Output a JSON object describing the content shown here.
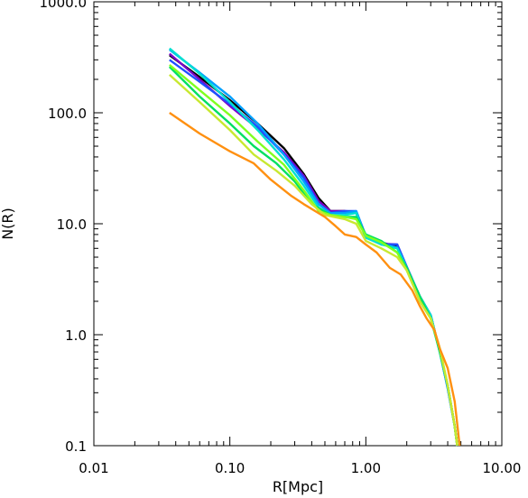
{
  "chart_data": {
    "type": "line",
    "title": "",
    "xlabel": "R[Mpc]",
    "ylabel": "N(R)",
    "xscale": "log",
    "yscale": "log",
    "xlim": [
      0.01,
      10.0
    ],
    "ylim": [
      0.1,
      1000.0
    ],
    "grid": false,
    "legend": "none",
    "x_ticks": [
      {
        "value": 0.01,
        "label": "0.01"
      },
      {
        "value": 0.1,
        "label": "0.10"
      },
      {
        "value": 1.0,
        "label": "1.00"
      },
      {
        "value": 10.0,
        "label": "10.00"
      }
    ],
    "y_ticks": [
      {
        "value": 0.1,
        "label": "0.1"
      },
      {
        "value": 1.0,
        "label": "1.0"
      },
      {
        "value": 10.0,
        "label": "10.0"
      },
      {
        "value": 100.0,
        "label": "100.0"
      },
      {
        "value": 1000.0,
        "label": "1000.0"
      }
    ],
    "series": [
      {
        "color": "#000000",
        "points": [
          [
            0.036,
            330
          ],
          [
            0.06,
            210
          ],
          [
            0.1,
            130
          ],
          [
            0.16,
            80
          ],
          [
            0.25,
            48
          ],
          [
            0.35,
            28
          ],
          [
            0.45,
            17
          ],
          [
            0.55,
            13
          ],
          [
            0.7,
            13
          ],
          [
            0.85,
            12.5
          ],
          [
            1.0,
            7.5
          ],
          [
            1.3,
            6.8
          ],
          [
            1.7,
            6.2
          ],
          [
            2.0,
            4.0
          ],
          [
            2.5,
            2.2
          ],
          [
            3.0,
            1.5
          ],
          [
            3.5,
            0.7
          ],
          [
            4.0,
            0.35
          ],
          [
            4.5,
            0.15
          ],
          [
            4.7,
            0.1
          ]
        ]
      },
      {
        "color": "#7a00c8",
        "points": [
          [
            0.036,
            340
          ],
          [
            0.06,
            200
          ],
          [
            0.1,
            115
          ],
          [
            0.16,
            72
          ],
          [
            0.25,
            44
          ],
          [
            0.35,
            27
          ],
          [
            0.45,
            16
          ],
          [
            0.55,
            13
          ],
          [
            0.7,
            13
          ],
          [
            0.85,
            12.8
          ],
          [
            1.0,
            7.5
          ],
          [
            1.3,
            6.6
          ],
          [
            1.7,
            6.5
          ],
          [
            2.0,
            4.0
          ],
          [
            2.5,
            2.2
          ],
          [
            3.0,
            1.5
          ],
          [
            3.5,
            0.7
          ],
          [
            4.0,
            0.35
          ],
          [
            4.5,
            0.15
          ],
          [
            4.7,
            0.1
          ]
        ]
      },
      {
        "color": "#1e50ff",
        "points": [
          [
            0.036,
            300
          ],
          [
            0.06,
            190
          ],
          [
            0.1,
            120
          ],
          [
            0.16,
            75
          ],
          [
            0.25,
            42
          ],
          [
            0.35,
            26
          ],
          [
            0.45,
            15
          ],
          [
            0.55,
            12.5
          ],
          [
            0.7,
            13
          ],
          [
            0.85,
            13
          ],
          [
            1.0,
            7.8
          ],
          [
            1.3,
            6.5
          ],
          [
            1.7,
            6.5
          ],
          [
            2.0,
            4.1
          ],
          [
            2.5,
            2.2
          ],
          [
            3.0,
            1.5
          ],
          [
            3.5,
            0.7
          ],
          [
            4.0,
            0.33
          ],
          [
            4.5,
            0.15
          ],
          [
            4.7,
            0.1
          ]
        ]
      },
      {
        "color": "#00a0ff",
        "points": [
          [
            0.036,
            370
          ],
          [
            0.06,
            230
          ],
          [
            0.1,
            140
          ],
          [
            0.16,
            80
          ],
          [
            0.25,
            42
          ],
          [
            0.35,
            24
          ],
          [
            0.45,
            15
          ],
          [
            0.55,
            12.5
          ],
          [
            0.7,
            12.5
          ],
          [
            0.85,
            13
          ],
          [
            1.0,
            7.6
          ],
          [
            1.3,
            6.5
          ],
          [
            1.7,
            6.1
          ],
          [
            2.0,
            4.0
          ],
          [
            2.5,
            2.2
          ],
          [
            3.0,
            1.5
          ],
          [
            3.5,
            0.7
          ],
          [
            4.0,
            0.33
          ],
          [
            4.5,
            0.15
          ],
          [
            4.7,
            0.1
          ]
        ]
      },
      {
        "color": "#00e0d0",
        "points": [
          [
            0.036,
            380
          ],
          [
            0.06,
            225
          ],
          [
            0.1,
            125
          ],
          [
            0.16,
            70
          ],
          [
            0.25,
            38
          ],
          [
            0.35,
            22
          ],
          [
            0.45,
            14
          ],
          [
            0.55,
            12
          ],
          [
            0.7,
            12
          ],
          [
            0.85,
            12.5
          ],
          [
            1.0,
            7.5
          ],
          [
            1.3,
            6.5
          ],
          [
            1.7,
            6
          ],
          [
            2.0,
            4.0
          ],
          [
            2.5,
            2.2
          ],
          [
            3.0,
            1.5
          ],
          [
            3.5,
            0.7
          ],
          [
            4.0,
            0.35
          ],
          [
            4.5,
            0.15
          ],
          [
            4.7,
            0.1
          ]
        ]
      },
      {
        "color": "#00e060",
        "points": [
          [
            0.036,
            260
          ],
          [
            0.06,
            140
          ],
          [
            0.1,
            80
          ],
          [
            0.15,
            50
          ],
          [
            0.22,
            35
          ],
          [
            0.3,
            24
          ],
          [
            0.4,
            15
          ],
          [
            0.55,
            12
          ],
          [
            0.7,
            11.5
          ],
          [
            0.85,
            11.5
          ],
          [
            1.0,
            8.0
          ],
          [
            1.3,
            7.0
          ],
          [
            1.7,
            5.5
          ],
          [
            2.0,
            4.0
          ],
          [
            2.5,
            2.2
          ],
          [
            3.0,
            1.4
          ],
          [
            3.5,
            0.7
          ],
          [
            4.0,
            0.35
          ],
          [
            4.5,
            0.15
          ],
          [
            4.7,
            0.1
          ]
        ]
      },
      {
        "color": "#80ff20",
        "points": [
          [
            0.036,
            270
          ],
          [
            0.06,
            160
          ],
          [
            0.1,
            95
          ],
          [
            0.16,
            55
          ],
          [
            0.25,
            34
          ],
          [
            0.35,
            20
          ],
          [
            0.45,
            13
          ],
          [
            0.55,
            12
          ],
          [
            0.7,
            11.5
          ],
          [
            0.85,
            11
          ],
          [
            1.0,
            7.8
          ],
          [
            1.3,
            6.8
          ],
          [
            1.7,
            5.5
          ],
          [
            2.0,
            3.8
          ],
          [
            2.5,
            2.0
          ],
          [
            3.0,
            1.4
          ],
          [
            3.5,
            0.75
          ],
          [
            4.0,
            0.35
          ],
          [
            4.5,
            0.15
          ],
          [
            4.7,
            0.1
          ]
        ]
      },
      {
        "color": "#c8e830",
        "points": [
          [
            0.036,
            220
          ],
          [
            0.06,
            125
          ],
          [
            0.1,
            70
          ],
          [
            0.15,
            42
          ],
          [
            0.22,
            30
          ],
          [
            0.3,
            22
          ],
          [
            0.4,
            15
          ],
          [
            0.5,
            12
          ],
          [
            0.7,
            11
          ],
          [
            0.85,
            10
          ],
          [
            1.0,
            7.0
          ],
          [
            1.3,
            6.0
          ],
          [
            1.7,
            5.0
          ],
          [
            2.0,
            3.8
          ],
          [
            2.5,
            2.0
          ],
          [
            3.0,
            1.4
          ],
          [
            3.5,
            0.75
          ],
          [
            4.0,
            0.35
          ],
          [
            4.5,
            0.15
          ],
          [
            4.7,
            0.1
          ]
        ]
      },
      {
        "color": "#ff9010",
        "points": [
          [
            0.036,
            100
          ],
          [
            0.06,
            65
          ],
          [
            0.1,
            45
          ],
          [
            0.15,
            35
          ],
          [
            0.2,
            25
          ],
          [
            0.28,
            18
          ],
          [
            0.35,
            15
          ],
          [
            0.5,
            11.5
          ],
          [
            0.6,
            9.5
          ],
          [
            0.7,
            8.0
          ],
          [
            0.85,
            7.6
          ],
          [
            1.0,
            6.5
          ],
          [
            1.2,
            5.5
          ],
          [
            1.5,
            4.0
          ],
          [
            1.8,
            3.5
          ],
          [
            2.2,
            2.5
          ],
          [
            2.5,
            1.8
          ],
          [
            2.8,
            1.4
          ],
          [
            3.2,
            1.1
          ],
          [
            3.5,
            0.75
          ],
          [
            4.0,
            0.5
          ],
          [
            4.5,
            0.25
          ],
          [
            4.9,
            0.1
          ]
        ]
      }
    ]
  }
}
